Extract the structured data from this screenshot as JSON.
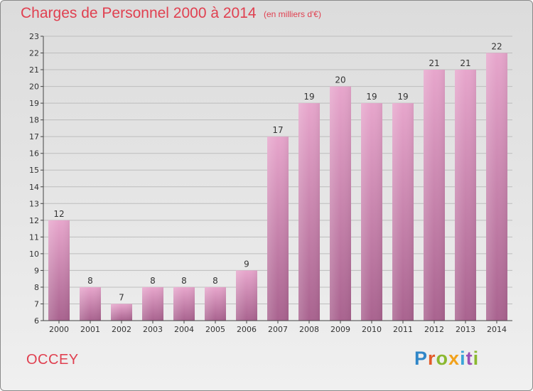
{
  "header": {
    "title": "Charges de Personnel 2000 à 2014",
    "subtitle": "(en milliers d'€)"
  },
  "footer": {
    "commune": "OCCEY",
    "logo_text": "Proxiti"
  },
  "colors": {
    "title": "#e04050",
    "bar_top": "#e7a6cc",
    "bar_bottom": "#a9638f",
    "grid": "#bdbdbd"
  },
  "chart_data": {
    "type": "bar",
    "title": "Charges de Personnel 2000 à 2014",
    "subtitle": "(en milliers d'€)",
    "categories": [
      "2000",
      "2001",
      "2002",
      "2003",
      "2004",
      "2005",
      "2006",
      "2007",
      "2008",
      "2009",
      "2010",
      "2011",
      "2012",
      "2013",
      "2014"
    ],
    "values": [
      12,
      8,
      7,
      8,
      8,
      8,
      9,
      17,
      19,
      20,
      19,
      19,
      21,
      21,
      22
    ],
    "ylim": [
      6,
      23
    ],
    "yticks": [
      6,
      7,
      8,
      9,
      10,
      11,
      12,
      13,
      14,
      15,
      16,
      17,
      18,
      19,
      20,
      21,
      22,
      23
    ],
    "grid": true,
    "data_labels": true
  }
}
